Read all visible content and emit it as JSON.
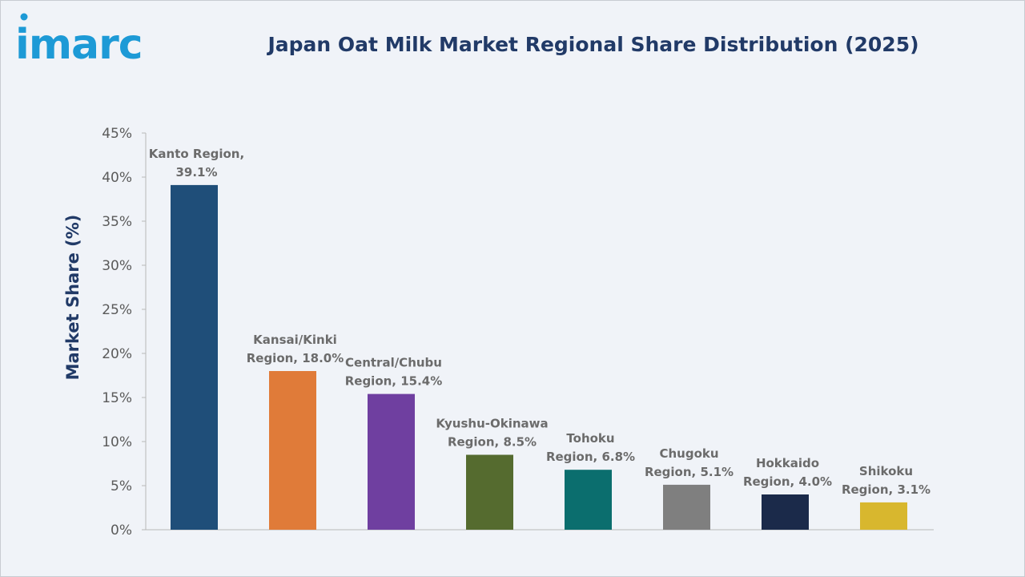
{
  "brand": {
    "logo_text": "imarc",
    "logo_color": "#1d9ad6"
  },
  "chart_data": {
    "type": "bar",
    "title": "Japan Oat Milk Market Regional Share Distribution (2025)",
    "xlabel": "",
    "ylabel": "Market Share (%)",
    "ylim": [
      0,
      45
    ],
    "yticks": [
      "0%",
      "5%",
      "10%",
      "15%",
      "20%",
      "25%",
      "30%",
      "35%",
      "40%",
      "45%"
    ],
    "categories": [
      "Kanto Region",
      "Kansai/Kinki Region",
      "Central/Chubu Region",
      "Kyushu-Okinawa Region",
      "Tohoku Region",
      "Chugoku Region",
      "Hokkaido Region",
      "Shikoku Region"
    ],
    "values": [
      39.1,
      18.0,
      15.4,
      8.5,
      6.8,
      5.1,
      4.0,
      3.1
    ],
    "data_labels": [
      [
        "Kanto Region,",
        "39.1%"
      ],
      [
        "Kansai/Kinki",
        "Region, 18.0%"
      ],
      [
        "Central/Chubu",
        "Region, 15.4%"
      ],
      [
        "Kyushu-Okinawa",
        "Region, 8.5%"
      ],
      [
        "Tohoku",
        "Region, 6.8%"
      ],
      [
        "Chugoku",
        "Region, 5.1%"
      ],
      [
        "Hokkaido",
        "Region, 4.0%"
      ],
      [
        "Shikoku",
        "Region, 3.1%"
      ]
    ],
    "colors": [
      "#1f4e79",
      "#e07b39",
      "#6f3fa0",
      "#556b2f",
      "#0b6e6e",
      "#7f7f7f",
      "#1b2a4a",
      "#d8b72e"
    ],
    "grid": false,
    "legend": "none"
  }
}
